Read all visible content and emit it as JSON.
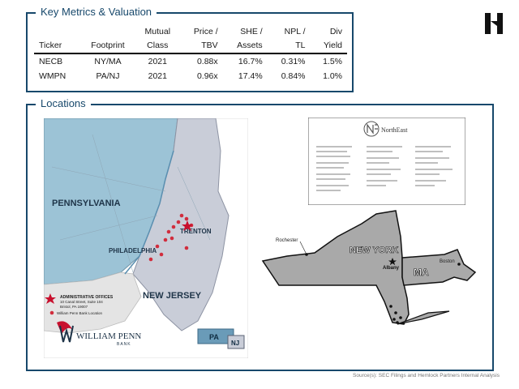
{
  "metrics": {
    "title": "Key Metrics & Valuation",
    "header_row1": [
      "",
      "",
      "Mutual",
      "Price /",
      "SHE /",
      "NPL /",
      "Div"
    ],
    "header_row2": [
      "Ticker",
      "Footprint",
      "Class",
      "TBV",
      "Assets",
      "TL",
      "Yield"
    ],
    "rows": [
      [
        "NECB",
        "NY/MA",
        "2021",
        "0.88x",
        "16.7%",
        "0.31%",
        "1.5%"
      ],
      [
        "WMPN",
        "PA/NJ",
        "2021",
        "0.96x",
        "17.4%",
        "0.84%",
        "1.0%"
      ]
    ]
  },
  "locations": {
    "title": "Locations",
    "pa_nj_map": {
      "state_labels": [
        "PENNSYLVANIA",
        "NEW JERSEY"
      ],
      "city_labels": [
        "TRENTON",
        "PHILADELPHIA"
      ],
      "badges": [
        "PA",
        "NJ"
      ],
      "legend": {
        "office_title": "ADMINISTRATIVE OFFICES",
        "office_line1": "10 Canal Street, Suite 104",
        "office_line2": "Bristol, PA 19007",
        "branch": "William Penn Bank Location"
      },
      "bank_name": "WILLIAM PENN",
      "bank_sub": "BANK"
    },
    "ny_map": {
      "brand": "NorthEast",
      "labels": [
        "NEW YORK",
        "MA"
      ],
      "cities": [
        "Rochester",
        "Albany",
        "Boston"
      ]
    }
  },
  "source": "Source(s): SEC Filings and Hemlock Partners Internal Analysis",
  "colors": {
    "frame": "#17486b",
    "pa_fill": "#9cc3d6",
    "nj_fill": "#c9cdd8",
    "ny_fill": "#a9a9a9"
  }
}
